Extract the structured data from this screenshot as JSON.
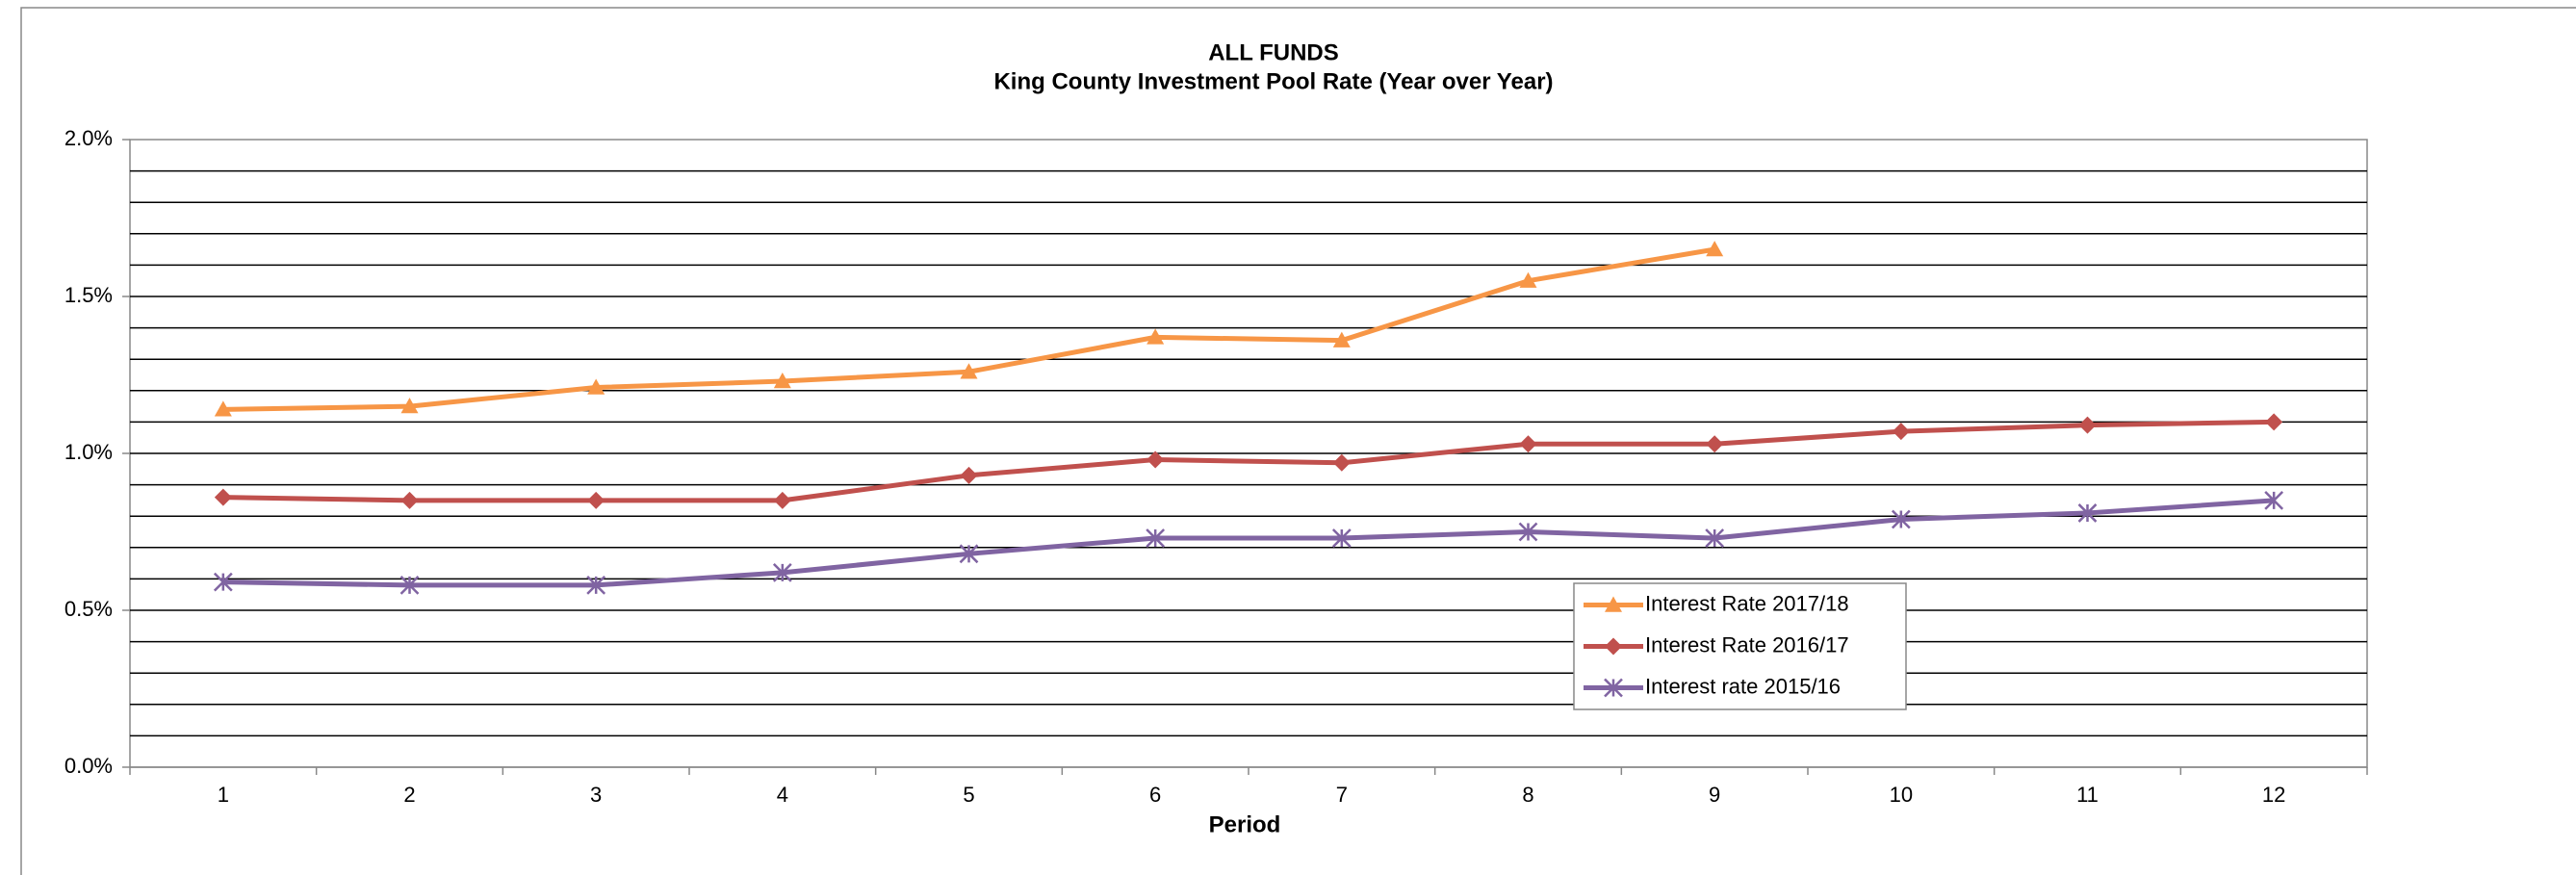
{
  "chart_data": {
    "type": "line",
    "title": "ALL FUNDS",
    "subtitle": "King County Investment Pool Rate (Year over Year)",
    "x_label": "Period",
    "categories": [
      "1",
      "2",
      "3",
      "4",
      "5",
      "6",
      "7",
      "8",
      "9",
      "10",
      "11",
      "12"
    ],
    "series": [
      {
        "name": "Interest Rate 2017/18",
        "color": "#f79646",
        "marker": "triangle",
        "values": [
          1.14,
          1.15,
          1.21,
          1.23,
          1.26,
          1.37,
          1.36,
          1.55,
          1.65,
          null,
          null,
          null
        ]
      },
      {
        "name": "Interest Rate 2016/17",
        "color": "#c0504d",
        "marker": "diamond",
        "values": [
          0.86,
          0.85,
          0.85,
          0.85,
          0.93,
          0.98,
          0.97,
          1.03,
          1.03,
          1.07,
          1.09,
          1.1
        ]
      },
      {
        "name": "Interest rate 2015/16",
        "color": "#8064a2",
        "marker": "star",
        "values": [
          0.59,
          0.58,
          0.58,
          0.62,
          0.68,
          0.73,
          0.73,
          0.75,
          0.73,
          0.79,
          0.81,
          0.85
        ]
      }
    ],
    "ylim": [
      0,
      2
    ],
    "yticks": [
      {
        "value": 0,
        "label": "0.0%"
      },
      {
        "value": 0.5,
        "label": "0.5%"
      },
      {
        "value": 1,
        "label": "1.0%"
      },
      {
        "value": 1.5,
        "label": "1.5%"
      },
      {
        "value": 2,
        "label": "2.0%"
      }
    ],
    "minor_grid_step": 0.1,
    "grid": true,
    "legend_position": "lower-right"
  }
}
